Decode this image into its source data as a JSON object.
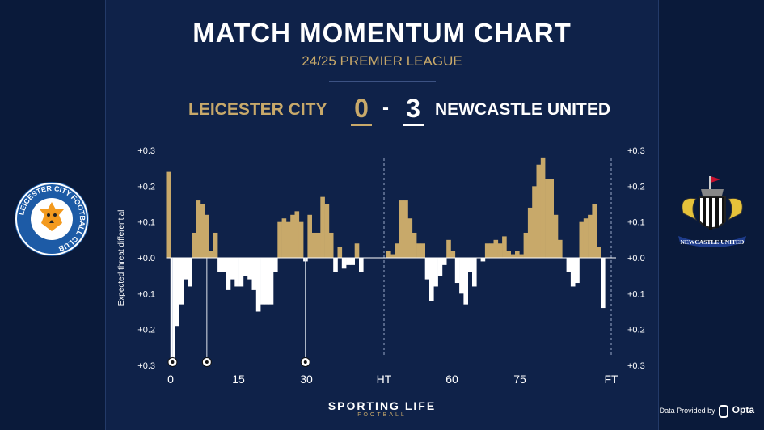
{
  "header": {
    "title": "MATCH MOMENTUM CHART",
    "subtitle": "24/25 PREMIER LEAGUE",
    "home_team": "LEICESTER CITY",
    "away_team": "NEWCASTLE UNITED",
    "home_score": "0",
    "away_score": "3",
    "separator": "-"
  },
  "crests": {
    "home_text": "LEICESTER CITY FOOTBALL CLUB",
    "away_text": "NEWCASTLE UNITED"
  },
  "footer": {
    "brand": "SPORTING LIFE",
    "brand_sub": "FOOTBALL",
    "provider_prefix": "Data Provided by",
    "provider": "Opta"
  },
  "colors": {
    "background": "#0f2249",
    "home": "#c8a96a",
    "away": "#ffffff"
  },
  "chart_data": {
    "type": "bar",
    "ylabel": "Expected threat differential",
    "ylim": [
      -0.3,
      0.3
    ],
    "y_ticks": [
      "+0.3",
      "+0.2",
      "+0.1",
      "+0.0",
      "+0.1",
      "+0.2",
      "+0.3"
    ],
    "x_ticks": [
      "0",
      "15",
      "30",
      "HT",
      "60",
      "75",
      "FT"
    ],
    "dividers": [
      "HT",
      "FT"
    ],
    "first_half_values": [
      0.24,
      -0.28,
      -0.19,
      -0.13,
      -0.06,
      -0.08,
      0.07,
      0.16,
      0.15,
      0.12,
      0.02,
      0.07,
      -0.04,
      -0.04,
      -0.09,
      -0.06,
      -0.08,
      -0.08,
      -0.05,
      -0.06,
      -0.09,
      -0.15,
      -0.13,
      -0.13,
      -0.13,
      -0.04,
      0.1,
      0.11,
      0.1,
      0.12,
      0.13,
      0.1,
      -0.01,
      0.12,
      0.07,
      0.07,
      0.17,
      0.15,
      0.07,
      -0.04,
      0.03,
      -0.03,
      -0.02,
      -0.02,
      0.04,
      -0.04
    ],
    "second_half_values": [
      0.02,
      0.01,
      0.04,
      0.16,
      0.16,
      0.11,
      0.07,
      0.04,
      0.04,
      -0.06,
      -0.12,
      -0.08,
      -0.05,
      -0.02,
      0.05,
      0.02,
      -0.07,
      -0.1,
      -0.13,
      -0.04,
      -0.08,
      0.0,
      -0.01,
      0.04,
      0.04,
      0.05,
      0.04,
      0.06,
      0.02,
      0.01,
      0.02,
      0.01,
      0.07,
      0.14,
      0.2,
      0.26,
      0.28,
      0.22,
      0.22,
      0.12,
      0.05,
      0.0,
      -0.04,
      -0.08,
      -0.07,
      0.1,
      0.11,
      0.12,
      0.15,
      0.03,
      -0.14
    ],
    "goals": [
      {
        "team": "away",
        "minute": 1
      },
      {
        "team": "away",
        "minute": 9
      },
      {
        "team": "away",
        "minute": 32
      }
    ]
  }
}
